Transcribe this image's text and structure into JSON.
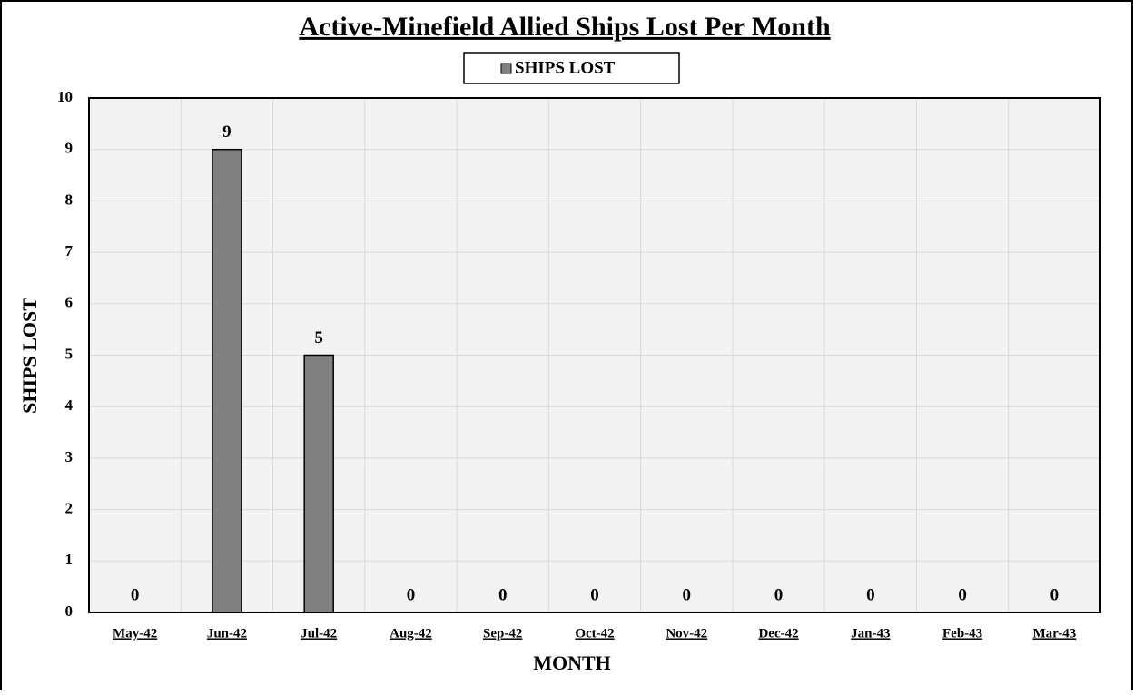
{
  "chart_data": {
    "type": "bar",
    "title": "Active-Minefield Allied Ships Lost Per Month",
    "x_label": "MONTH",
    "y_label": "SHIPS LOST",
    "categories": [
      "May-42",
      "Jun-42",
      "Jul-42",
      "Aug-42",
      "Sep-42",
      "Oct-42",
      "Nov-42",
      "Dec-42",
      "Jan-43",
      "Feb-43",
      "Mar-43"
    ],
    "series": [
      {
        "name": "SHIPS LOST",
        "color": "#808080",
        "values": [
          0,
          9,
          5,
          0,
          0,
          0,
          0,
          0,
          0,
          0,
          0
        ]
      }
    ],
    "ylim": [
      0,
      10
    ],
    "yticks": [
      0,
      1,
      2,
      3,
      4,
      5,
      6,
      7,
      8,
      9,
      10
    ],
    "grid": true,
    "legend": "top"
  }
}
